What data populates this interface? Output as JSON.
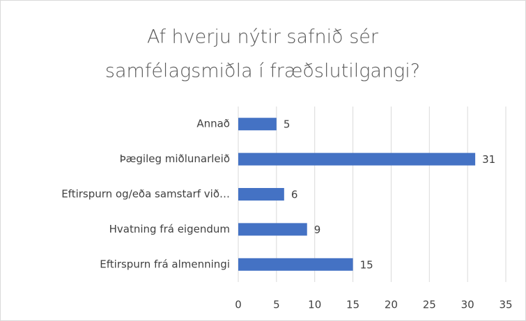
{
  "chart_data": {
    "type": "hbar",
    "title": [
      "Af hverju nýtir safnið sér",
      "samfélagsmiðla í fræðslutilgangi?"
    ],
    "categories": [
      "Annað",
      "Þægileg miðlunarleið",
      "Eftirspurn og/eða samstarf við…",
      "Hvatning frá eigendum",
      "Eftirspurn frá almenningi"
    ],
    "values": [
      5,
      31,
      6,
      9,
      15
    ],
    "color": "#4472c4",
    "xlim": [
      0,
      35
    ],
    "xticks": [
      0,
      5,
      10,
      15,
      20,
      25,
      30,
      35
    ],
    "grid": true
  }
}
